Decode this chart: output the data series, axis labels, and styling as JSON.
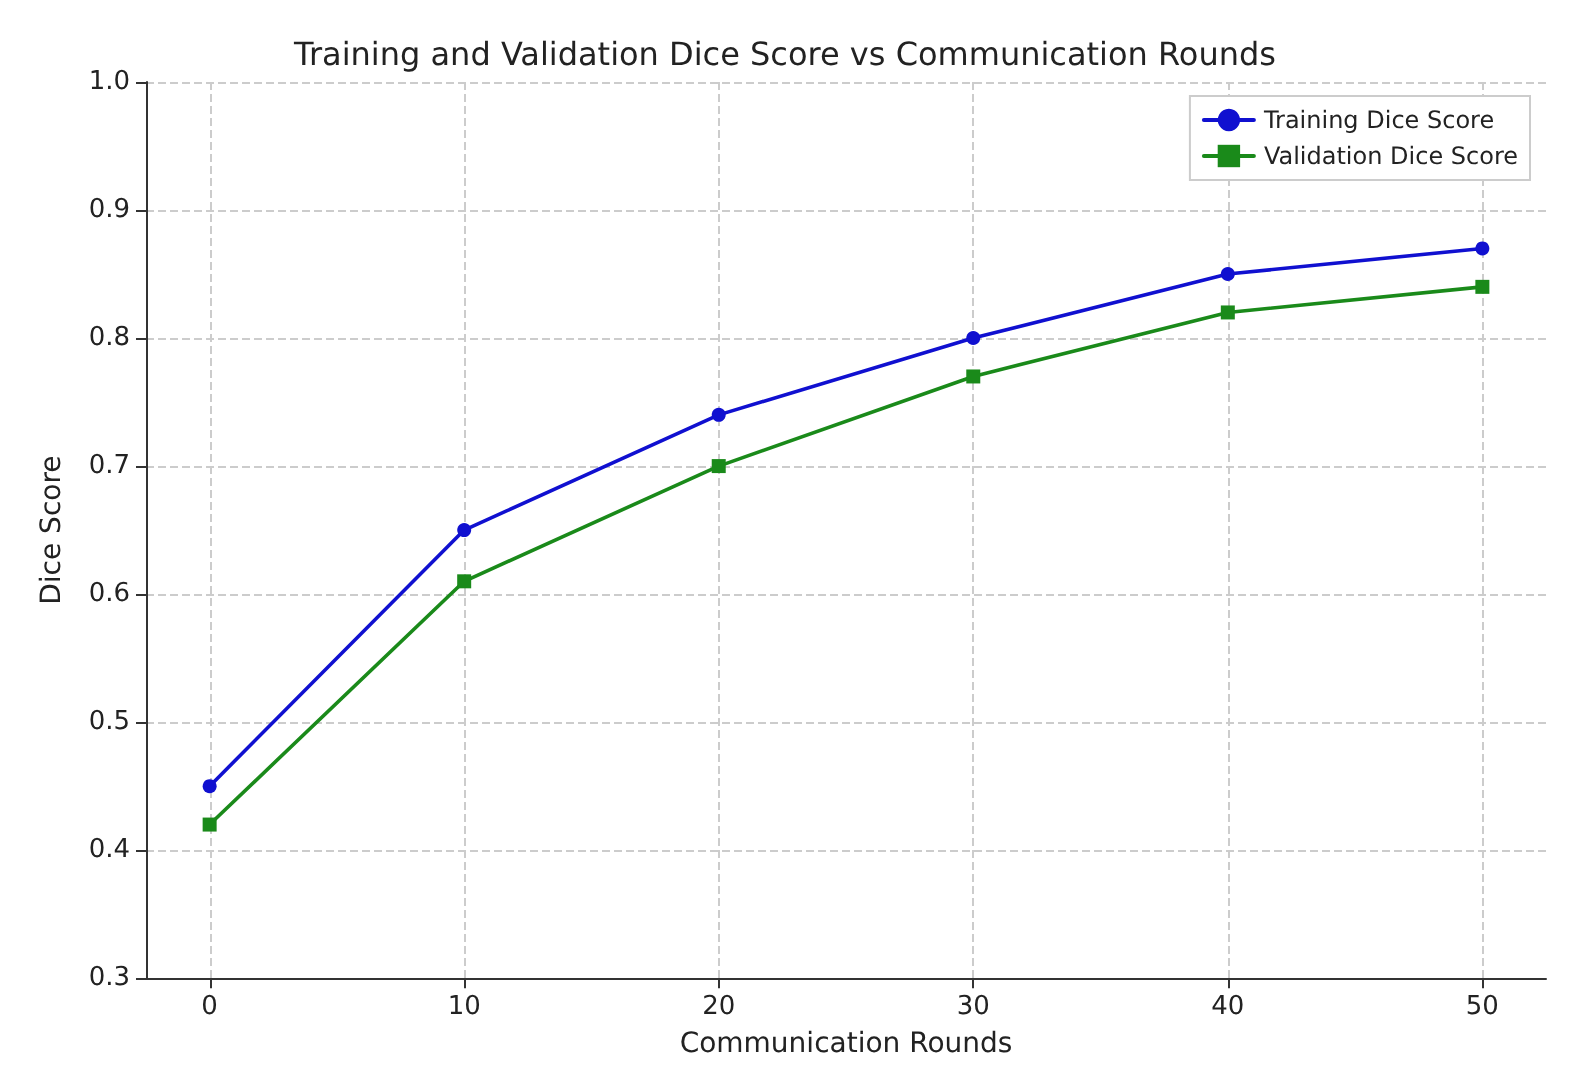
{
  "chart_data": {
    "type": "line",
    "title": "Training and Validation Dice Score vs Communication Rounds",
    "xlabel": "Communication Rounds",
    "ylabel": "Dice Score",
    "x": [
      0,
      10,
      20,
      30,
      40,
      50
    ],
    "series": [
      {
        "name": "Training Dice Score",
        "color": "#1010d0",
        "values": [
          0.45,
          0.65,
          0.74,
          0.8,
          0.85,
          0.87
        ],
        "marker": "circle"
      },
      {
        "name": "Validation Dice Score",
        "color": "#1a8a1a",
        "values": [
          0.42,
          0.61,
          0.7,
          0.77,
          0.82,
          0.84
        ],
        "marker": "square"
      }
    ],
    "xlim": [
      -2.5,
      52.5
    ],
    "xticks": [
      0,
      10,
      20,
      30,
      40,
      50
    ],
    "ylim": [
      0.3,
      1.0
    ],
    "yticks": [
      0.3,
      0.4,
      0.5,
      0.6,
      0.7,
      0.8,
      0.9,
      {
        "value": 1,
        "label": "1.0"
      }
    ],
    "grid": true,
    "legend": "top right",
    "line_style": "solid"
  }
}
